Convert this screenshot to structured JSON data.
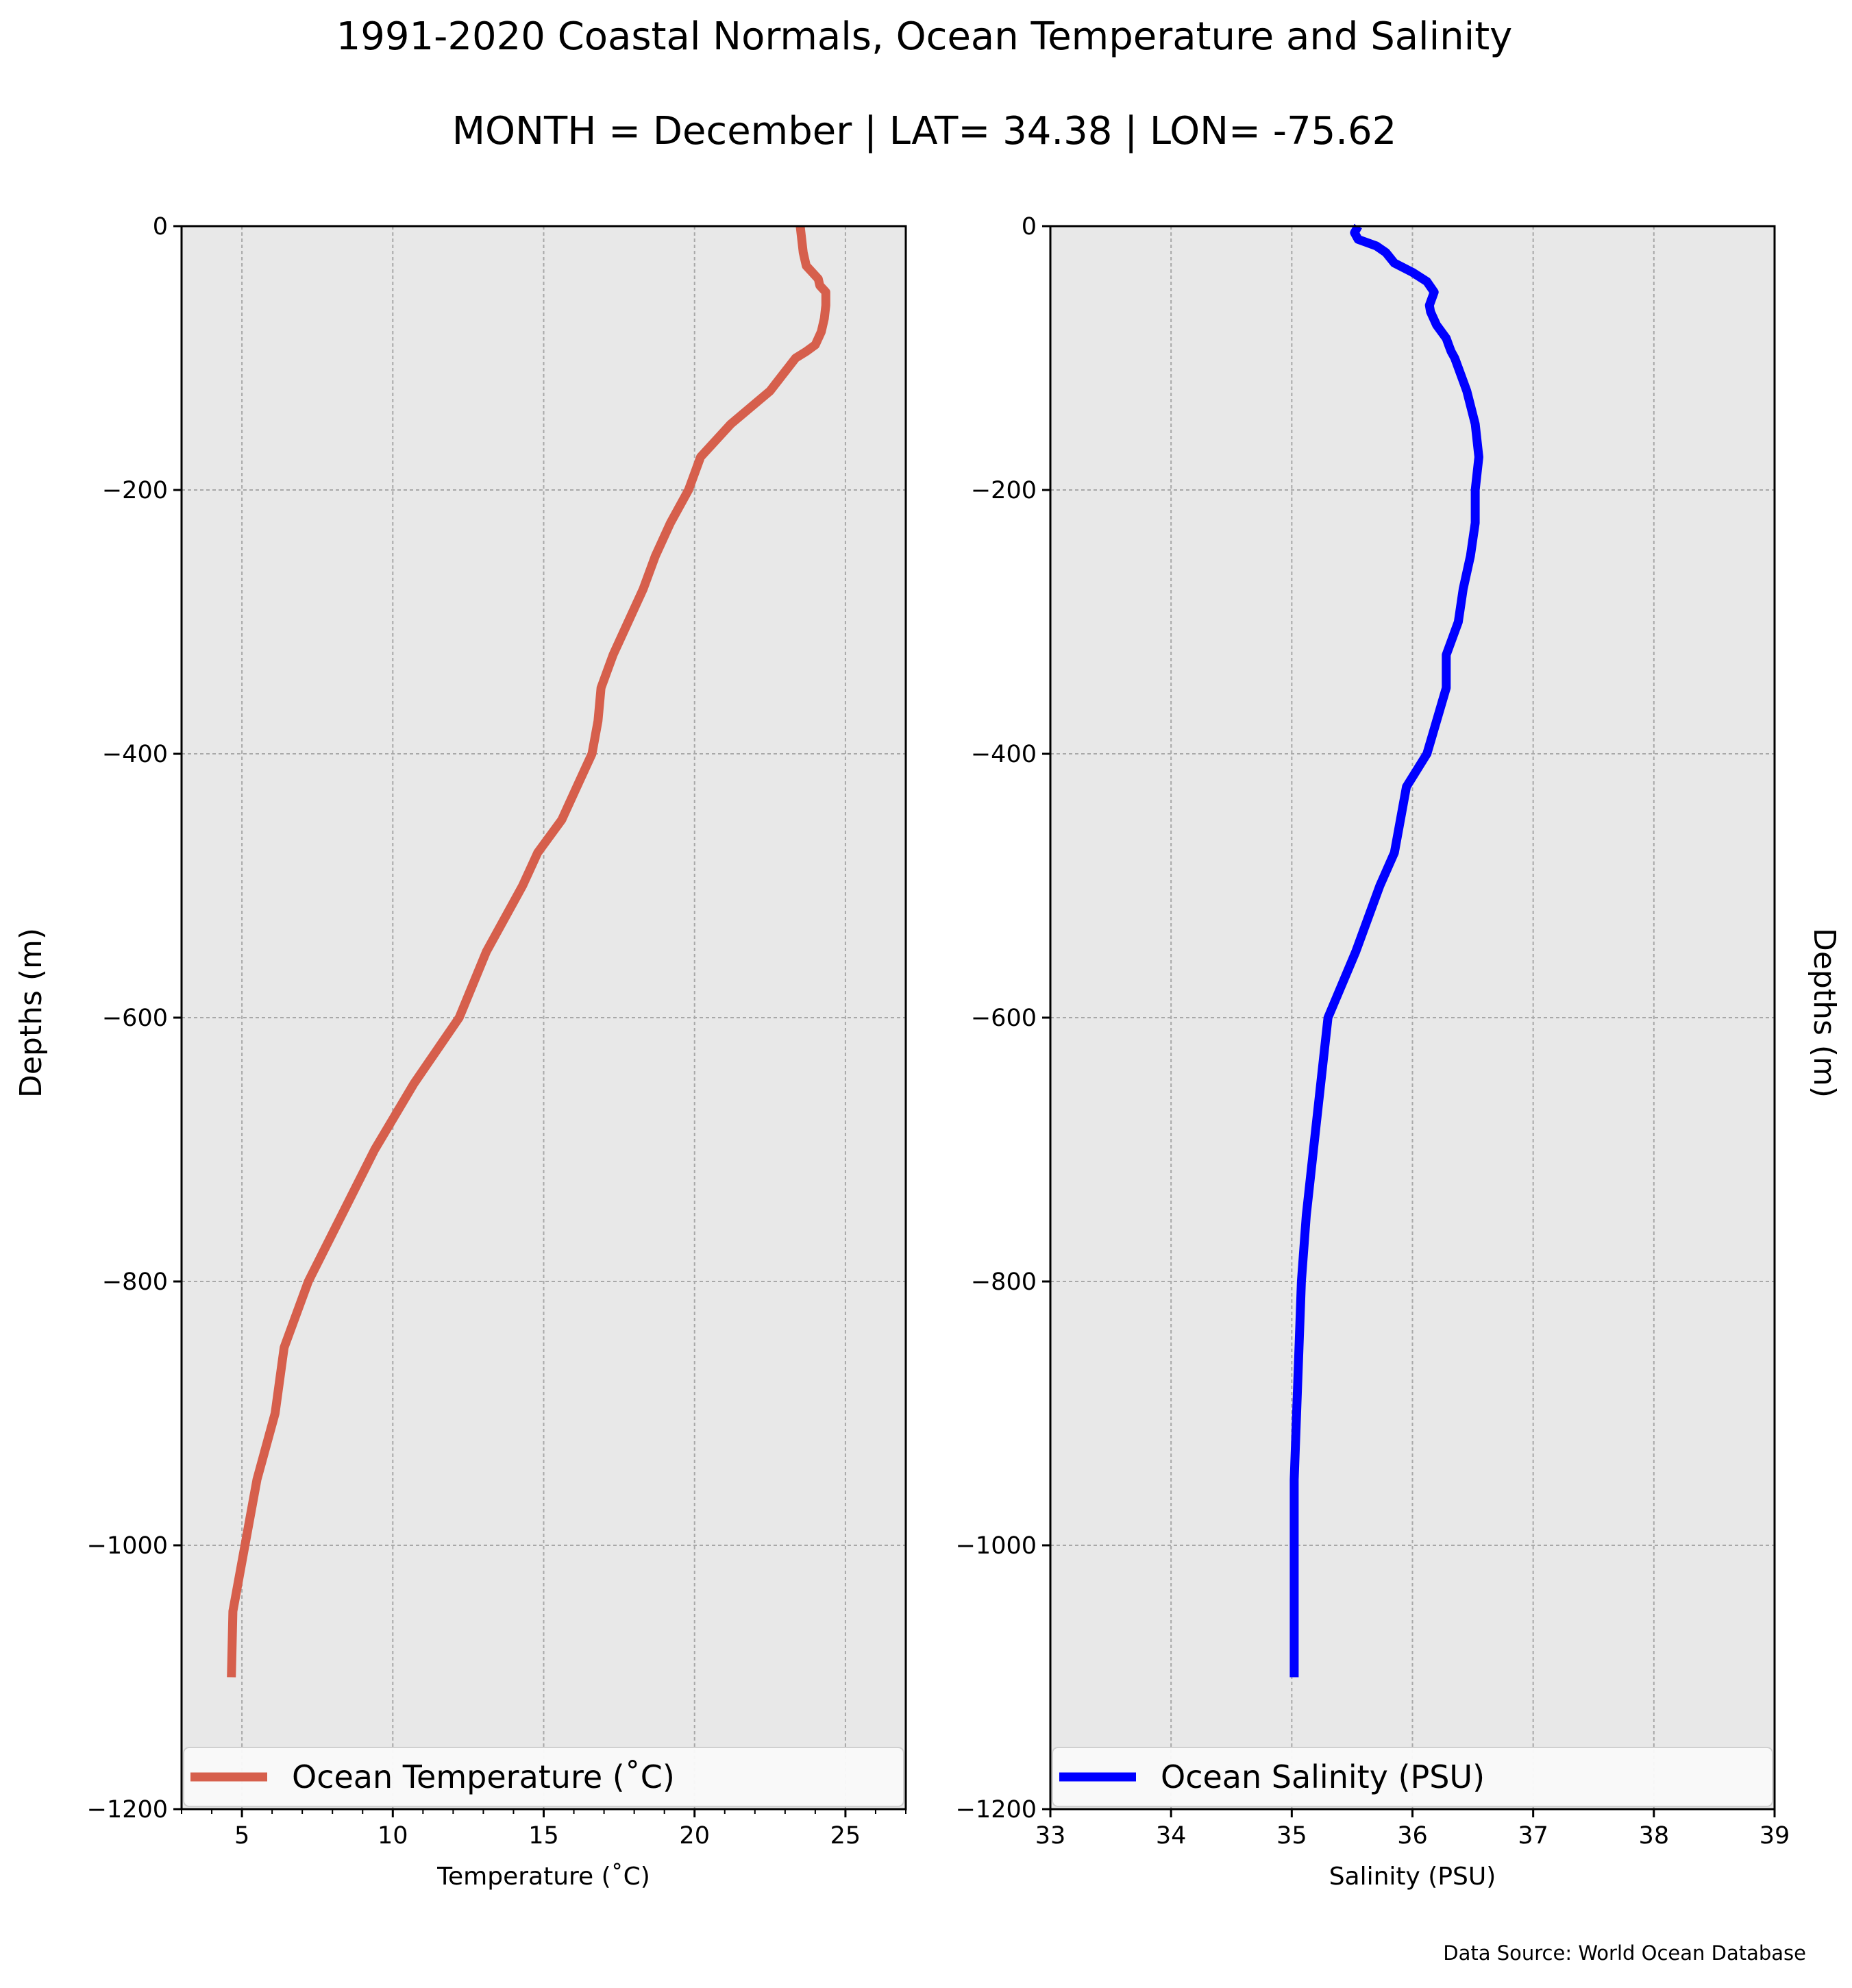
{
  "figure": {
    "title_line1": "1991-2020 Coastal Normals, Ocean Temperature and Salinity",
    "title_line2": "MONTH = December | LAT= 34.38 | LON= -75.62",
    "source_note": "Data Source: World Ocean Database",
    "background_color": "#ffffff",
    "axes_facecolor": "#e8e8e8"
  },
  "chart_data": [
    {
      "type": "line",
      "xlabel": "Temperature (˚C)",
      "ylabel": "Depths (m)",
      "xlim": [
        3,
        27
      ],
      "ylim": [
        -1200,
        0
      ],
      "xticks": [
        5,
        10,
        15,
        20,
        25
      ],
      "xtick_labels": [
        "5",
        "10",
        "15",
        "20",
        "25"
      ],
      "yticks": [
        0,
        -200,
        -400,
        -600,
        -800,
        -1000,
        -1200
      ],
      "ytick_labels": [
        "0",
        "−200",
        "−400",
        "−600",
        "−800",
        "−1000",
        "−1200"
      ],
      "grid": true,
      "legend_position": "lower-center",
      "series": [
        {
          "name": "Ocean Temperature (˚C)",
          "color": "#d65f4c",
          "x": [
            23.5,
            23.55,
            23.6,
            23.7,
            23.9,
            24.1,
            24.15,
            24.35,
            24.35,
            24.3,
            24.2,
            24.0,
            23.7,
            23.35,
            22.5,
            21.2,
            20.2,
            19.8,
            19.2,
            18.7,
            18.3,
            17.8,
            17.3,
            16.9,
            16.8,
            16.6,
            16.1,
            15.6,
            14.8,
            14.5,
            14.3,
            13.1,
            12.2,
            10.7,
            9.4,
            8.3,
            7.2,
            6.4,
            6.1,
            5.5,
            5.1,
            4.7,
            4.65
          ],
          "y": [
            0,
            -10,
            -20,
            -30,
            -35,
            -40,
            -45,
            -50,
            -60,
            -70,
            -80,
            -90,
            -95,
            -100,
            -125,
            -150,
            -175,
            -200,
            -225,
            -250,
            -275,
            -300,
            -325,
            -350,
            -375,
            -400,
            -425,
            -450,
            -475,
            -490,
            -500,
            -550,
            -600,
            -650,
            -700,
            -750,
            -800,
            -850,
            -900,
            -950,
            -1000,
            -1050,
            -1100
          ]
        }
      ]
    },
    {
      "type": "line",
      "xlabel": "Salinity (PSU)",
      "ylabel": "Depths (m)",
      "xlim": [
        33,
        39
      ],
      "ylim": [
        -1200,
        0
      ],
      "xticks": [
        33,
        34,
        35,
        36,
        37,
        38,
        39
      ],
      "xtick_labels": [
        "33",
        "34",
        "35",
        "36",
        "37",
        "38",
        "39"
      ],
      "yticks": [
        0,
        -200,
        -400,
        -600,
        -800,
        -1000,
        -1200
      ],
      "ytick_labels": [
        "0",
        "−200",
        "−400",
        "−600",
        "−800",
        "−1000",
        "−1200"
      ],
      "grid": true,
      "legend_position": "lower-center",
      "series": [
        {
          "name": "Ocean Salinity (PSU)",
          "color": "#0000ff",
          "x": [
            35.55,
            35.52,
            35.55,
            35.7,
            35.78,
            35.85,
            36.0,
            36.12,
            36.18,
            36.16,
            36.14,
            36.15,
            36.2,
            36.28,
            36.3,
            36.32,
            36.35,
            36.45,
            36.52,
            36.55,
            36.52,
            36.52,
            36.48,
            36.42,
            36.38,
            36.28,
            36.28,
            36.2,
            36.12,
            35.95,
            35.85,
            35.73,
            35.53,
            35.3,
            35.18,
            35.12,
            35.08,
            35.06,
            35.04,
            35.02,
            35.02
          ],
          "y": [
            0,
            -5,
            -10,
            -15,
            -20,
            -28,
            -35,
            -42,
            -50,
            -55,
            -60,
            -65,
            -75,
            -85,
            -90,
            -95,
            -100,
            -125,
            -150,
            -175,
            -200,
            -225,
            -250,
            -275,
            -300,
            -325,
            -350,
            -375,
            -400,
            -425,
            -475,
            -500,
            -550,
            -600,
            -700,
            -750,
            -800,
            -850,
            -900,
            -950,
            -1100
          ]
        }
      ]
    }
  ]
}
